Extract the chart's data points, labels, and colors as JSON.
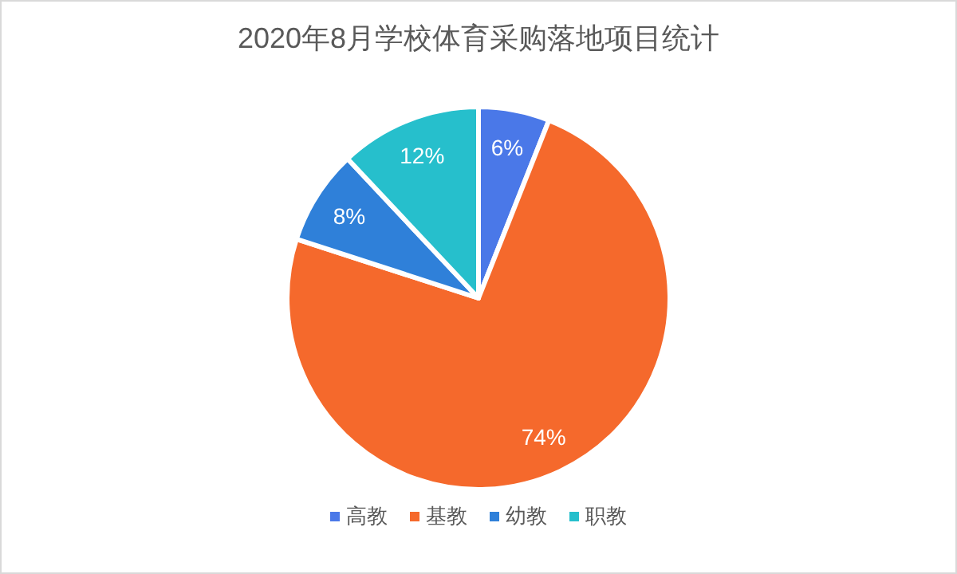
{
  "chart_data": {
    "type": "pie",
    "title": "2020年8月学校体育采购落地项目统计",
    "categories": [
      "高教",
      "基教",
      "幼教",
      "职教"
    ],
    "values": [
      6,
      74,
      8,
      12
    ],
    "colors": [
      "#4a78e8",
      "#f5692c",
      "#2f80d9",
      "#26bfcc"
    ],
    "value_labels": [
      "6%",
      "74%",
      "8%",
      "12%"
    ],
    "legend": "bottom"
  }
}
